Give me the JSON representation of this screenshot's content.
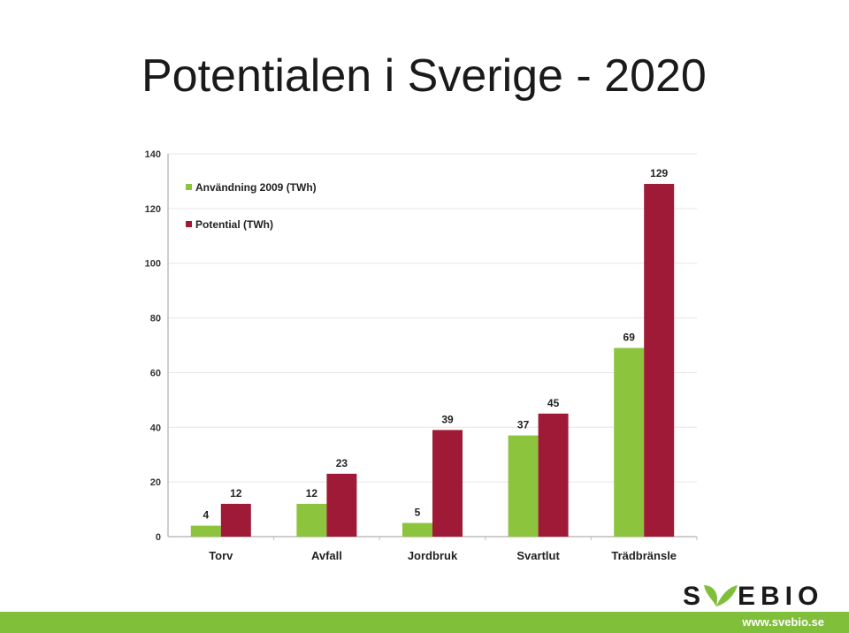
{
  "slide": {
    "title": "Potentialen i Sverige - 2020"
  },
  "brand": {
    "logo_text_left": "S",
    "logo_text_right": "EBIO",
    "url": "www.svebio.se",
    "green": "#7fbf3a",
    "dark": "#1a1a1a"
  },
  "chart_data": {
    "type": "bar",
    "categories": [
      "Torv",
      "Avfall",
      "Jordbruk",
      "Svartlut",
      "Trädbränsle"
    ],
    "series": [
      {
        "name": "Användning 2009 (TWh)",
        "values": [
          4,
          12,
          5,
          37,
          69
        ],
        "color": "#8cc43e"
      },
      {
        "name": "Potential (TWh)",
        "values": [
          12,
          23,
          39,
          45,
          129
        ],
        "color": "#9e1a36"
      }
    ],
    "yticks": [
      0,
      20,
      40,
      60,
      80,
      100,
      120,
      140
    ],
    "ylim": [
      0,
      140
    ],
    "title": "",
    "xlabel": "",
    "ylabel": "",
    "grid": true,
    "legend_position": "top-left"
  }
}
